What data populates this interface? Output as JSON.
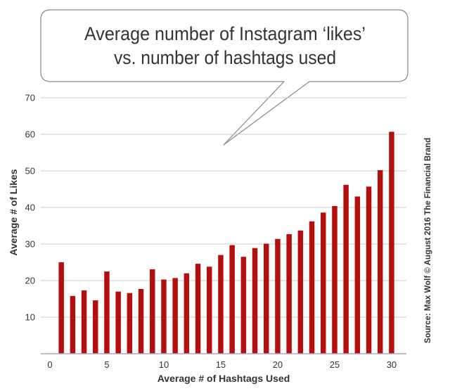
{
  "chart_data": {
    "type": "bar",
    "title_lines": [
      "Average number of Instagram ‘likes’",
      "vs. number of hashtags used"
    ],
    "xlabel": "Average # of Hashtags Used",
    "ylabel": "Average # of Likes",
    "source": "Source: Max Wolf © August 2016 The Financial Brand",
    "x": [
      1,
      2,
      3,
      4,
      5,
      6,
      7,
      8,
      9,
      10,
      11,
      12,
      13,
      14,
      15,
      16,
      17,
      18,
      19,
      20,
      21,
      22,
      23,
      24,
      25,
      26,
      27,
      28,
      29,
      30
    ],
    "values": [
      25,
      15.8,
      17.3,
      14.6,
      22.5,
      17,
      16.6,
      17.7,
      23.1,
      20.3,
      20.7,
      22,
      24.6,
      23.8,
      27,
      29.7,
      26.5,
      28.9,
      30.1,
      31.4,
      32.7,
      33.7,
      36.2,
      38.6,
      40.4,
      46.2,
      43,
      45.7,
      50.2,
      60.7
    ],
    "xlim": [
      -0.8,
      31.3
    ],
    "ylim": [
      0,
      70
    ],
    "x_ticks": [
      0,
      5,
      10,
      15,
      20,
      25,
      30
    ],
    "y_ticks": [
      10,
      20,
      30,
      40,
      50,
      60,
      70
    ],
    "grid": true,
    "legend": "none",
    "colors": {
      "bar": "#b40f0f",
      "grid": "#c9c9c9",
      "axis": "#aaaaaa",
      "text": "#333333",
      "bubble_stroke": "#888888"
    }
  }
}
